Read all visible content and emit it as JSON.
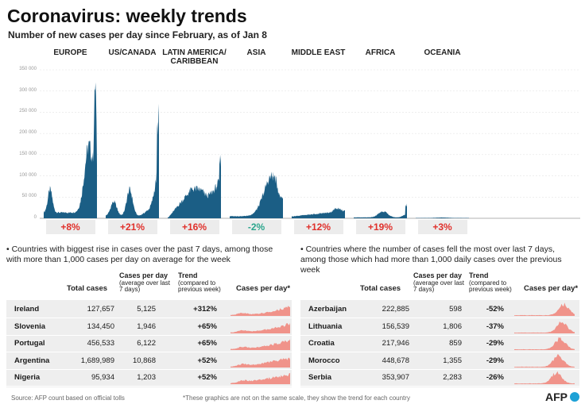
{
  "title": "Coronavirus: weekly trends",
  "subtitle": "Number of new cases per day since February, as of Jan 8",
  "chart_data": {
    "type": "area",
    "y_ticks": [
      "350 000",
      "300 000",
      "250 000",
      "200 000",
      "150 000",
      "100 000",
      "50 000",
      "0"
    ],
    "ylim": [
      0,
      350000
    ],
    "regions": [
      {
        "name": "EUROPE",
        "trend": "+8%",
        "peak": 320000
      },
      {
        "name": "US/CANADA",
        "trend": "+21%",
        "peak": 270000
      },
      {
        "name": "LATIN AMERICA/ CARIBBEAN",
        "trend": "+16%",
        "peak": 150000
      },
      {
        "name": "ASIA",
        "trend": "-2%",
        "peak": 110000
      },
      {
        "name": "MIDDLE EAST",
        "trend": "+12%",
        "peak": 25000
      },
      {
        "name": "AFRICA",
        "trend": "+19%",
        "peak": 35000
      },
      {
        "name": "OCEANIA",
        "trend": "+3%",
        "peak": 2000
      }
    ],
    "colors": {
      "area": "#1b5e85",
      "rise": "#e0302b",
      "fall": "#2aa58c",
      "spark": "#f0938a"
    }
  },
  "rise": {
    "heading": "• Countries with biggest rise in cases over the past 7 days, among those with more than 1,000 cases per day on average for the week",
    "headers": {
      "total": "Total cases",
      "per_day": "Cases per day",
      "per_day_sub": "(average over last 7 days)",
      "trend": "Trend",
      "trend_sub": "(compared to previous week)",
      "spark": "Cases per day*"
    },
    "rows": [
      {
        "country": "Ireland",
        "total": "127,657",
        "per_day": "5,125",
        "trend": "+312%"
      },
      {
        "country": "Slovenia",
        "total": "134,450",
        "per_day": "1,946",
        "trend": "+65%"
      },
      {
        "country": "Portugal",
        "total": "456,533",
        "per_day": "6,122",
        "trend": "+65%"
      },
      {
        "country": "Argentina",
        "total": "1,689,989",
        "per_day": "10,868",
        "trend": "+52%"
      },
      {
        "country": "Nigeria",
        "total": "95,934",
        "per_day": "1,203",
        "trend": "+52%"
      }
    ]
  },
  "fall": {
    "heading": "• Countries where the number of cases fell the most over last 7 days, among those which had more than 1,000 daily cases over the previous week",
    "headers": {
      "total": "Total cases",
      "per_day": "Cases per day",
      "per_day_sub": "(average over last 7 days)",
      "trend": "Trend",
      "trend_sub": "(compared to previous week)",
      "spark": "Cases per day*"
    },
    "rows": [
      {
        "country": "Azerbaijan",
        "total": "222,885",
        "per_day": "598",
        "trend": "-52%"
      },
      {
        "country": "Lithuania",
        "total": "156,539",
        "per_day": "1,806",
        "trend": "-37%"
      },
      {
        "country": "Croatia",
        "total": "217,946",
        "per_day": "859",
        "trend": "-29%"
      },
      {
        "country": "Morocco",
        "total": "448,678",
        "per_day": "1,355",
        "trend": "-29%"
      },
      {
        "country": "Serbia",
        "total": "353,907",
        "per_day": "2,283",
        "trend": "-26%"
      }
    ]
  },
  "footer": {
    "source": "Source: AFP count based on official tolls",
    "note": "*These graphics are not on the same scale, they show the trend for each country",
    "logo": "AFP"
  }
}
